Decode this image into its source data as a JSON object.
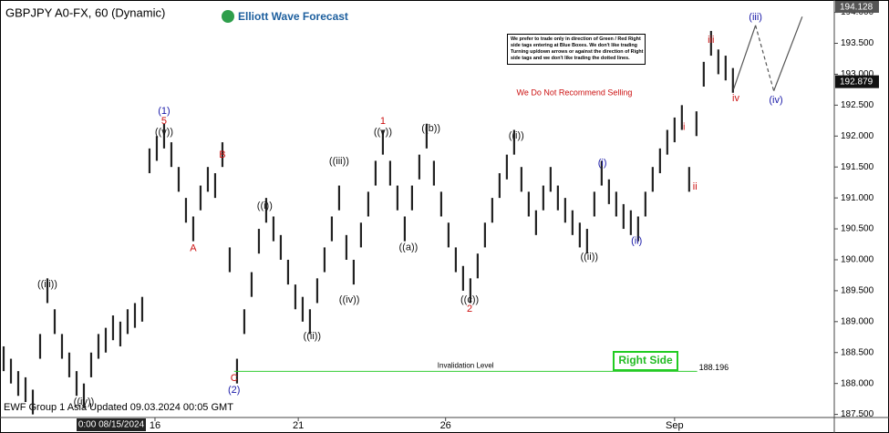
{
  "chart_data": {
    "type": "ohlc",
    "title": "GBPJPY A0-FX, 60 (Dynamic)",
    "logo": "Elliott Wave Forecast",
    "warning": "We Do Not Recommend Selling",
    "note": [
      "We prefer to trade only in direction of Green / Red Right",
      "side tags entering at Blue Boxes. We don't like trading",
      "Turning up/down arrows or against the direction of Right",
      "side tags and we don't like trading the dotted lines."
    ],
    "footer": "EWF Group 1 Asia Updated 09.03.2024 00:05 GMT",
    "cursor_label": "0:00 08/15/2024",
    "right_side": "Right Side",
    "bar_color": "#222222",
    "high": [
      188.6,
      188.4,
      188.2,
      188.1,
      187.9,
      188.8,
      189.7,
      189.2,
      188.8,
      188.5,
      188.2,
      188.0,
      188.5,
      188.8,
      188.9,
      189.1,
      189.0,
      189.2,
      189.3,
      189.4,
      191.8,
      192.0,
      192.2,
      191.9,
      191.5,
      191.0,
      190.7,
      191.2,
      191.5,
      191.4,
      191.9,
      190.2,
      188.4,
      189.2,
      189.8,
      190.5,
      191.0,
      190.7,
      190.4,
      190.0,
      189.6,
      189.4,
      189.2,
      189.7,
      190.2,
      190.7,
      191.2,
      190.4,
      190.0,
      190.6,
      191.1,
      191.6,
      192.1,
      191.6,
      191.2,
      190.7,
      191.2,
      191.7,
      192.2,
      191.6,
      191.1,
      190.6,
      190.2,
      189.9,
      189.7,
      190.1,
      190.6,
      191.0,
      191.4,
      191.7,
      192.1,
      191.5,
      191.1,
      190.8,
      191.2,
      191.5,
      191.2,
      191.0,
      190.8,
      190.6,
      190.5,
      191.1,
      191.6,
      191.3,
      191.1,
      190.9,
      190.8,
      190.7,
      191.1,
      191.5,
      191.8,
      192.1,
      192.3,
      192.5,
      191.5,
      192.4,
      193.2,
      193.7,
      193.4,
      193.3,
      193.1
    ],
    "low": [
      188.2,
      188.0,
      187.8,
      187.7,
      187.5,
      188.4,
      189.3,
      188.8,
      188.4,
      188.1,
      187.8,
      187.6,
      188.1,
      188.4,
      188.5,
      188.7,
      188.6,
      188.8,
      188.9,
      189.0,
      191.4,
      191.6,
      191.8,
      191.5,
      191.1,
      190.6,
      190.3,
      190.8,
      191.1,
      191.0,
      191.5,
      189.8,
      188.0,
      188.8,
      189.4,
      190.1,
      190.6,
      190.3,
      190.0,
      189.6,
      189.2,
      189.0,
      188.8,
      189.3,
      189.8,
      190.3,
      190.8,
      190.0,
      189.6,
      190.2,
      190.7,
      191.2,
      191.7,
      191.2,
      190.8,
      190.3,
      190.8,
      191.3,
      191.8,
      191.2,
      190.7,
      190.2,
      189.8,
      189.5,
      189.3,
      189.7,
      190.2,
      190.6,
      191.0,
      191.3,
      191.7,
      191.1,
      190.7,
      190.4,
      190.8,
      191.1,
      190.8,
      190.6,
      190.4,
      190.2,
      190.1,
      190.7,
      191.2,
      190.9,
      190.7,
      190.5,
      190.4,
      190.3,
      190.7,
      191.1,
      191.4,
      191.7,
      191.9,
      192.1,
      191.1,
      192.0,
      192.8,
      193.3,
      193.0,
      192.9,
      192.7
    ],
    "xlim": [
      -0.5,
      113.9
    ],
    "xticks": [
      {
        "value": 20.75,
        "label": "16"
      },
      {
        "value": 40.4,
        "label": "21"
      },
      {
        "value": 60.6,
        "label": "26"
      },
      {
        "value": 92,
        "label": "Sep"
      }
    ],
    "ylim": [
      187.45,
      194.2
    ],
    "yticks": [
      {
        "value": 187.5,
        "label": "187.500"
      },
      {
        "value": 188,
        "label": "188.000"
      },
      {
        "value": 188.5,
        "label": "188.500"
      },
      {
        "value": 189,
        "label": "189.000"
      },
      {
        "value": 189.5,
        "label": "189.500"
      },
      {
        "value": 190,
        "label": "190.000"
      },
      {
        "value": 190.5,
        "label": "190.500"
      },
      {
        "value": 191,
        "label": "191.000"
      },
      {
        "value": 191.5,
        "label": "191.500"
      },
      {
        "value": 192,
        "label": "192.000"
      },
      {
        "value": 192.5,
        "label": "192.500"
      },
      {
        "value": 193,
        "label": "193.000"
      },
      {
        "value": 193.5,
        "label": "193.500"
      },
      {
        "value": 194,
        "label": "194.000"
      }
    ],
    "last_price": 192.879,
    "top_price": 194.128,
    "invalidation": {
      "label": "Invalidation Level",
      "price": 188.196,
      "x": [
        31.6,
        95.1
      ],
      "color": "#33cc33"
    },
    "projection": {
      "x": [
        100.1,
        103.1,
        105.6,
        109.5
      ],
      "values": [
        192.76,
        193.79,
        192.73,
        193.93
      ],
      "dashed": [
        false,
        true,
        false
      ]
    },
    "annotations": [
      {
        "text": "((iii))",
        "color": "#111111",
        "x": 6,
        "y": 189.6
      },
      {
        "text": "((iv))",
        "color": "#111111",
        "x": 11,
        "y": 187.7
      },
      {
        "text": "(1)",
        "color": "#1a1aa8",
        "x": 22,
        "y": 192.4
      },
      {
        "text": "5",
        "color": "#cc1111",
        "x": 22,
        "y": 192.24
      },
      {
        "text": "((v))",
        "color": "#111111",
        "x": 22,
        "y": 192.06
      },
      {
        "text": "A",
        "color": "#cc1111",
        "x": 26,
        "y": 190.18
      },
      {
        "text": "B",
        "color": "#cc1111",
        "x": 30,
        "y": 191.69
      },
      {
        "text": "C",
        "color": "#cc1111",
        "x": 31.6,
        "y": 188.08
      },
      {
        "text": "(2)",
        "color": "#1a1aa8",
        "x": 31.6,
        "y": 187.89
      },
      {
        "text": "((i))",
        "color": "#111111",
        "x": 35.8,
        "y": 190.87
      },
      {
        "text": "((ii))",
        "color": "#111111",
        "x": 42.3,
        "y": 188.76
      },
      {
        "text": "((iii))",
        "color": "#111111",
        "x": 46,
        "y": 191.59
      },
      {
        "text": "((iv))",
        "color": "#111111",
        "x": 47.4,
        "y": 189.35
      },
      {
        "text": "1",
        "color": "#cc1111",
        "x": 52,
        "y": 192.24
      },
      {
        "text": "((v))",
        "color": "#111111",
        "x": 52,
        "y": 192.06
      },
      {
        "text": "((a))",
        "color": "#111111",
        "x": 55.5,
        "y": 190.2
      },
      {
        "text": "((b))",
        "color": "#111111",
        "x": 58.6,
        "y": 192.12
      },
      {
        "text": "((c))",
        "color": "#111111",
        "x": 63.9,
        "y": 189.35
      },
      {
        "text": "2",
        "color": "#cc1111",
        "x": 63.9,
        "y": 189.2
      },
      {
        "text": "((i))",
        "color": "#111111",
        "x": 70.3,
        "y": 192.0
      },
      {
        "text": "((ii))",
        "color": "#111111",
        "x": 80.3,
        "y": 190.04
      },
      {
        "text": "(i)",
        "color": "#1a1aa8",
        "x": 82.1,
        "y": 191.56
      },
      {
        "text": "(ii)",
        "color": "#1a1aa8",
        "x": 86.8,
        "y": 190.3
      },
      {
        "text": "i",
        "color": "#cc1111",
        "x": 93.3,
        "y": 192.14
      },
      {
        "text": "ii",
        "color": "#cc1111",
        "x": 94.8,
        "y": 191.18
      },
      {
        "text": "iii",
        "color": "#cc1111",
        "x": 97,
        "y": 193.55
      },
      {
        "text": "iv",
        "color": "#cc1111",
        "x": 100.4,
        "y": 192.61
      },
      {
        "text": "(iii)",
        "color": "#1a1aa8",
        "x": 103.1,
        "y": 193.92
      },
      {
        "text": "(iv)",
        "color": "#1a1aa8",
        "x": 105.9,
        "y": 192.58
      }
    ]
  }
}
